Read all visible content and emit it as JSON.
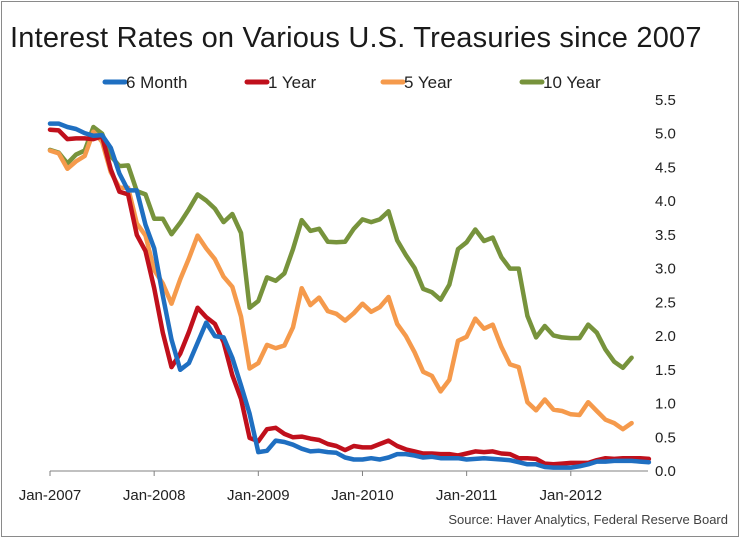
{
  "chart_data": {
    "type": "line",
    "title": "Interest Rates on Various U.S. Treasuries since 2007",
    "source": "Source: Haver Analytics, Federal Reserve Board",
    "xlabel": "",
    "ylabel": "",
    "x_tick_labels": [
      "Jan-2007",
      "Jan-2008",
      "Jan-2009",
      "Jan-2010",
      "Jan-2011",
      "Jan-2012"
    ],
    "y_tick_labels": [
      "0.0",
      "0.5",
      "1.0",
      "1.5",
      "2.0",
      "2.5",
      "3.0",
      "3.5",
      "4.0",
      "4.5",
      "5.0",
      "5.5"
    ],
    "ylim": [
      0,
      5.5
    ],
    "x_start": "Jan-2007",
    "x_end": "Aug-2012",
    "grid": false,
    "legend_position": "top",
    "series": [
      {
        "name": "6 Month",
        "color": "#1f6fc1",
        "values": [
          5.15,
          5.15,
          5.1,
          5.07,
          5.01,
          4.97,
          4.98,
          4.79,
          4.41,
          4.16,
          4.16,
          3.65,
          3.3,
          2.6,
          1.95,
          1.5,
          1.6,
          1.9,
          2.2,
          2.0,
          1.98,
          1.68,
          1.27,
          0.85,
          0.28,
          0.3,
          0.45,
          0.43,
          0.39,
          0.33,
          0.29,
          0.3,
          0.28,
          0.27,
          0.2,
          0.17,
          0.17,
          0.19,
          0.17,
          0.2,
          0.25,
          0.25,
          0.23,
          0.2,
          0.21,
          0.19,
          0.19,
          0.19,
          0.17,
          0.18,
          0.19,
          0.18,
          0.17,
          0.16,
          0.13,
          0.1,
          0.1,
          0.06,
          0.05,
          0.05,
          0.05,
          0.07,
          0.1,
          0.14,
          0.14,
          0.15,
          0.15,
          0.15,
          0.14,
          0.13
        ]
      },
      {
        "name": "1 Year",
        "color": "#c0101c",
        "values": [
          5.06,
          5.05,
          4.92,
          4.93,
          4.93,
          4.92,
          4.96,
          4.47,
          4.14,
          4.1,
          3.5,
          3.26,
          2.71,
          2.05,
          1.54,
          1.74,
          2.06,
          2.42,
          2.28,
          2.18,
          1.91,
          1.42,
          1.07,
          0.49,
          0.44,
          0.62,
          0.64,
          0.55,
          0.5,
          0.51,
          0.48,
          0.46,
          0.4,
          0.37,
          0.31,
          0.37,
          0.35,
          0.35,
          0.4,
          0.45,
          0.37,
          0.32,
          0.29,
          0.26,
          0.26,
          0.25,
          0.25,
          0.23,
          0.26,
          0.29,
          0.28,
          0.29,
          0.26,
          0.25,
          0.19,
          0.19,
          0.18,
          0.11,
          0.1,
          0.11,
          0.12,
          0.12,
          0.12,
          0.16,
          0.19,
          0.18,
          0.19,
          0.19,
          0.19,
          0.18
        ]
      },
      {
        "name": "5 Year",
        "color": "#f59a4c",
        "values": [
          4.75,
          4.71,
          4.48,
          4.59,
          4.67,
          5.03,
          4.88,
          4.43,
          4.2,
          4.2,
          3.67,
          3.49,
          2.98,
          2.78,
          2.48,
          2.84,
          3.15,
          3.49,
          3.3,
          3.14,
          2.88,
          2.73,
          2.29,
          1.52,
          1.6,
          1.87,
          1.82,
          1.86,
          2.13,
          2.71,
          2.46,
          2.57,
          2.37,
          2.33,
          2.23,
          2.34,
          2.48,
          2.36,
          2.43,
          2.58,
          2.18,
          2.0,
          1.76,
          1.47,
          1.41,
          1.18,
          1.35,
          1.93,
          1.99,
          2.26,
          2.11,
          2.17,
          1.84,
          1.58,
          1.54,
          1.02,
          0.9,
          1.06,
          0.91,
          0.89,
          0.84,
          0.83,
          1.02,
          0.89,
          0.76,
          0.71,
          0.62,
          0.71
        ]
      },
      {
        "name": "10 Year",
        "color": "#77933c",
        "values": [
          4.76,
          4.72,
          4.56,
          4.69,
          4.75,
          5.1,
          5.0,
          4.67,
          4.52,
          4.53,
          4.15,
          4.1,
          3.74,
          3.74,
          3.51,
          3.68,
          3.88,
          4.1,
          4.01,
          3.89,
          3.69,
          3.81,
          3.53,
          2.42,
          2.52,
          2.87,
          2.82,
          2.93,
          3.29,
          3.72,
          3.56,
          3.59,
          3.4,
          3.39,
          3.4,
          3.59,
          3.73,
          3.69,
          3.73,
          3.85,
          3.42,
          3.2,
          3.01,
          2.7,
          2.65,
          2.54,
          2.76,
          3.29,
          3.39,
          3.58,
          3.41,
          3.46,
          3.17,
          3.0,
          3.0,
          2.3,
          1.98,
          2.15,
          2.01,
          1.98,
          1.97,
          1.97,
          2.17,
          2.05,
          1.8,
          1.62,
          1.53,
          1.68
        ]
      }
    ]
  }
}
